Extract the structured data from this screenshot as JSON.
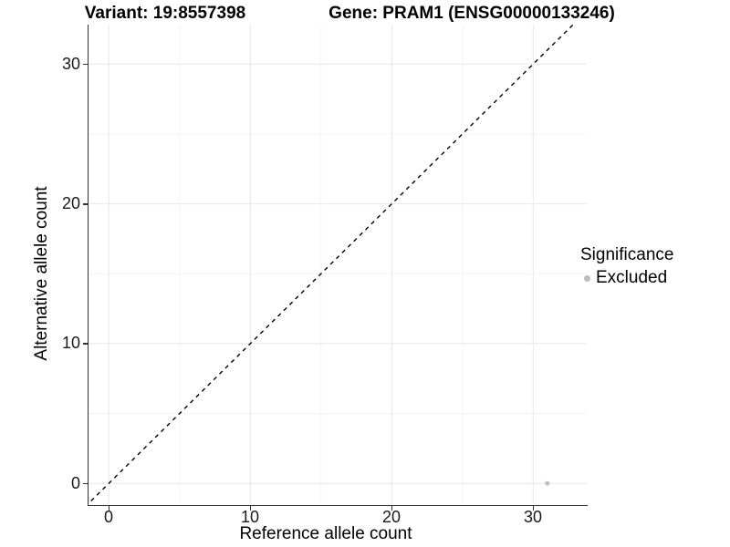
{
  "header": {
    "variant_title": "Variant: 19:8557398",
    "gene_title": "Gene: PRAM1 (ENSG00000133246)"
  },
  "axes": {
    "x": {
      "label": "Reference allele count",
      "ticks": [
        "0",
        "10",
        "20",
        "30"
      ]
    },
    "y": {
      "label": "Alternative allele count",
      "ticks": [
        "0",
        "10",
        "20",
        "30"
      ]
    }
  },
  "legend": {
    "title": "Significance",
    "items": [
      {
        "label": "Excluded",
        "color": "#bdbdbd"
      }
    ]
  },
  "chart_data": {
    "type": "scatter",
    "title": "Variant: 19:8557398 / Gene: PRAM1 (ENSG00000133246)",
    "xlabel": "Reference allele count",
    "ylabel": "Alternative allele count",
    "xlim": [
      -1.5,
      33.8
    ],
    "ylim": [
      -1.7,
      32.9
    ],
    "x_major_gridlines": [
      0,
      10,
      20,
      30
    ],
    "x_minor_gridlines": [
      5,
      15,
      25
    ],
    "y_major_gridlines": [
      0,
      10,
      20,
      30
    ],
    "y_minor_gridlines": [
      5,
      15,
      25
    ],
    "grid": true,
    "legend_position": "right",
    "series": [
      {
        "name": "Excluded",
        "color": "#bdbdbd",
        "marker": "circle",
        "points": [
          {
            "x": 31,
            "y": 0
          }
        ]
      }
    ],
    "reference_line": {
      "kind": "identity y=x",
      "style": "dashed",
      "color": "#000000"
    }
  },
  "colors": {
    "background": "#ffffff",
    "panel_background": "#ffffff",
    "grid_major": "#e8e8e8",
    "grid_minor": "#f4f4f4",
    "axis_line": "#333333",
    "tick_text": "#1a1a1a",
    "title_text": "#000000",
    "excluded_point": "#bdbdbd"
  }
}
